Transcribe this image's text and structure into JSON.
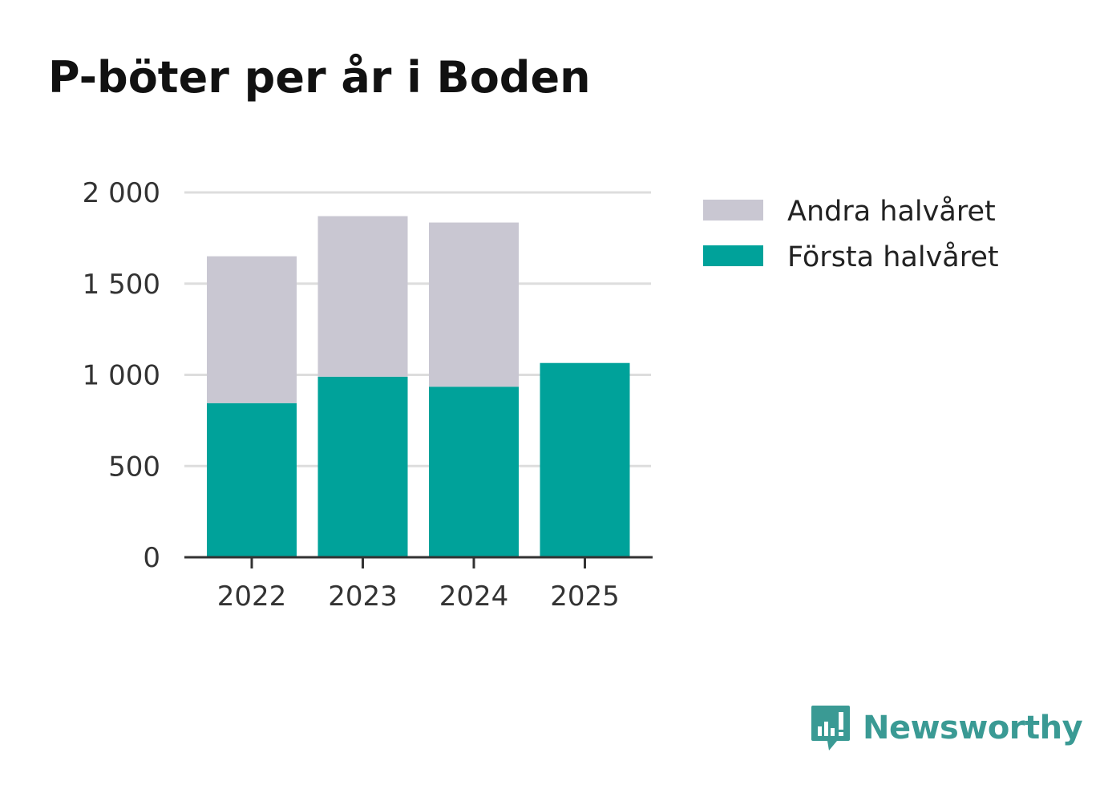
{
  "chart_data": {
    "type": "bar",
    "stacked": true,
    "title": "P-böter per år i Boden",
    "categories": [
      "2022",
      "2023",
      "2024",
      "2025"
    ],
    "series": [
      {
        "name": "Första halvåret",
        "color": "#00a29a",
        "values": [
          845,
          990,
          935,
          1065
        ]
      },
      {
        "name": "Andra halvåret",
        "color": "#c9c7d2",
        "values": [
          805,
          880,
          900,
          0
        ]
      }
    ],
    "legend_order": [
      "Andra halvåret",
      "Första halvåret"
    ],
    "legend_position": "right",
    "ylim": [
      0,
      2000
    ],
    "yticks": [
      0,
      500,
      1000,
      1500,
      2000
    ],
    "ytick_labels": [
      "0",
      "500",
      "1 000",
      "1 500",
      "2 000"
    ],
    "xlabel": "",
    "ylabel": "",
    "grid": true
  },
  "brand": {
    "name": "Newsworthy",
    "icon": "newsworthy-logo-icon",
    "color": "#3a9a94"
  }
}
